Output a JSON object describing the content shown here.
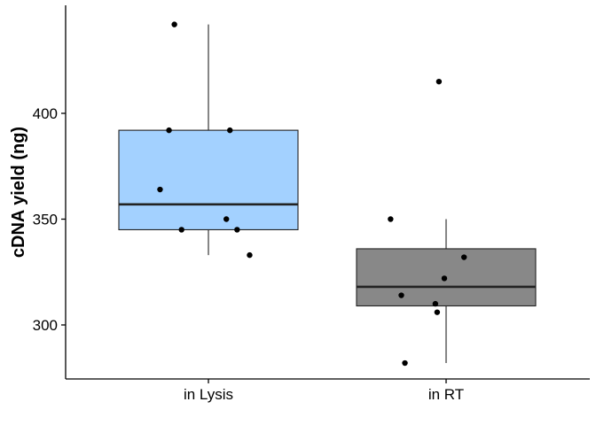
{
  "chart_data": {
    "type": "boxplot",
    "title": "",
    "xlabel": "",
    "ylabel": "cDNA yield (ng)",
    "ylim": [
      276,
      446
    ],
    "yticks": [
      300,
      350,
      400
    ],
    "grid": false,
    "legend": "none",
    "categories": [
      "in Lysis",
      "in RT"
    ],
    "boxes": [
      {
        "category": "in Lysis",
        "fill": "#a3d1ff",
        "whisker_low": 333,
        "q1": 345,
        "median": 357,
        "q3": 392,
        "whisker_high": 442,
        "points": [
          {
            "jitter": -0.19,
            "y": 442
          },
          {
            "jitter": -0.22,
            "y": 392
          },
          {
            "jitter": 0.12,
            "y": 392
          },
          {
            "jitter": -0.27,
            "y": 364
          },
          {
            "jitter": 0.1,
            "y": 350
          },
          {
            "jitter": -0.15,
            "y": 345
          },
          {
            "jitter": 0.16,
            "y": 345
          },
          {
            "jitter": 0.23,
            "y": 333
          }
        ]
      },
      {
        "category": "in RT",
        "fill": "#888888",
        "whisker_low": 282,
        "q1": 309,
        "median": 318,
        "q3": 336,
        "whisker_high": 350,
        "points": [
          {
            "jitter": -0.04,
            "y": 415
          },
          {
            "jitter": -0.31,
            "y": 350
          },
          {
            "jitter": 0.1,
            "y": 332
          },
          {
            "jitter": -0.01,
            "y": 322
          },
          {
            "jitter": -0.25,
            "y": 314
          },
          {
            "jitter": -0.06,
            "y": 310
          },
          {
            "jitter": -0.05,
            "y": 306
          },
          {
            "jitter": -0.23,
            "y": 282
          }
        ]
      }
    ]
  }
}
